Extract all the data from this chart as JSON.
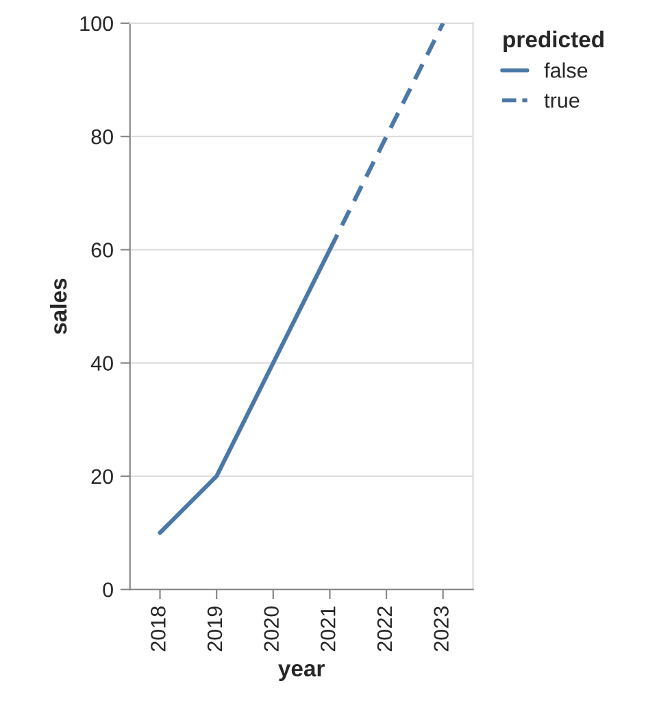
{
  "chart_data": {
    "type": "line",
    "xlabel": "year",
    "ylabel": "sales",
    "legend_title": "predicted",
    "categories": [
      "2018",
      "2019",
      "2020",
      "2021",
      "2022",
      "2023"
    ],
    "series": [
      {
        "name": "false",
        "color": "#4c78a8",
        "line_style": "solid",
        "values": [
          10,
          20,
          40,
          60,
          null,
          null
        ]
      },
      {
        "name": "true",
        "color": "#4c78a8",
        "line_style": "dashed",
        "values": [
          null,
          null,
          null,
          60,
          80,
          100
        ]
      }
    ],
    "ylim": [
      0,
      100
    ],
    "yticks": [
      0,
      20,
      40,
      60,
      80,
      100
    ],
    "grid": "y",
    "legend": "top right"
  }
}
